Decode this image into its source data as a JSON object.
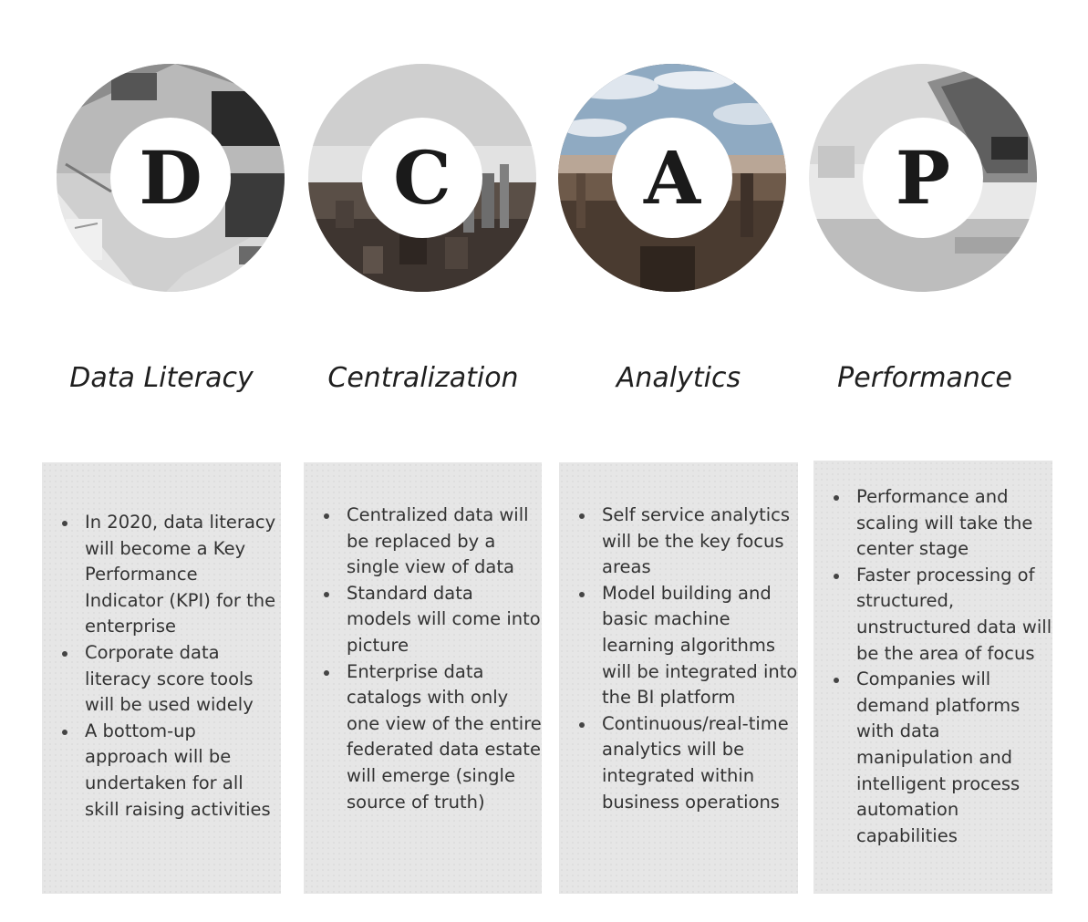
{
  "pillars": [
    {
      "letter": "D",
      "title": "Data Literacy",
      "bullets": [
        "In 2020, data literacy will become a Key Performance Indicator (KPI) for the enterprise",
        "Corporate data literacy score tools will be used widely",
        "A bottom-up approach will be undertaken for all skill raising activities"
      ]
    },
    {
      "letter": "C",
      "title": "Centralization",
      "bullets": [
        "Centralized data will be replaced by a single view of data",
        "Standard data models will come into picture",
        "Enterprise data catalogs with only one view of the entire federated data estate will emerge (single source of truth)"
      ]
    },
    {
      "letter": "A",
      "title": "Analytics",
      "bullets": [
        "Self service analytics will be the key focus areas",
        "Model building and basic machine learning algorithms will be integrated into the BI platform",
        "Continuous/real-time analytics will be integrated within business operations"
      ]
    },
    {
      "letter": "P",
      "title": "Performance",
      "bullets": [
        "Performance and scaling will take the center stage",
        "Faster processing of structured, unstructured data will be the area of focus",
        "Companies will demand platforms with data manipulation and intelligent process automation capabilities"
      ]
    }
  ]
}
